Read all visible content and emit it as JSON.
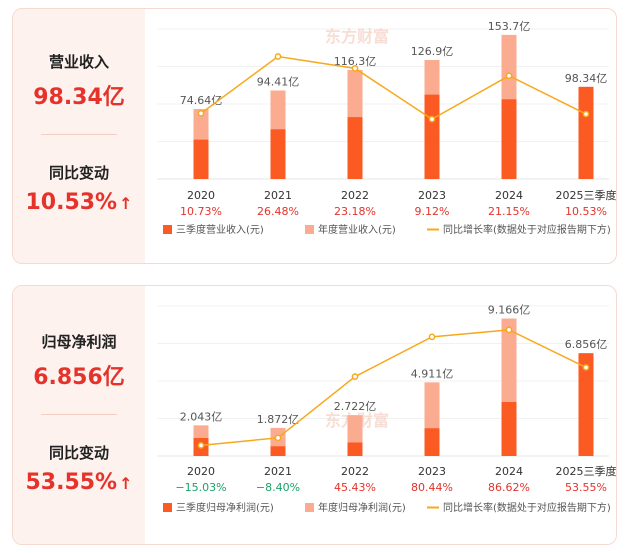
{
  "panels": [
    {
      "metric_label": "营业收入",
      "metric_value": "98.34亿",
      "change_label": "同比变动",
      "change_value": "10.53%",
      "change_arrow": "↑",
      "watermark": "东方财富",
      "legend": [
        "三季度营业收入(元)",
        "年度营业收入(元)",
        "同比增长率(数据处于对应报告期下方)"
      ]
    },
    {
      "metric_label": "归母净利润",
      "metric_value": "6.856亿",
      "change_label": "同比变动",
      "change_value": "53.55%",
      "change_arrow": "↑",
      "watermark": "东方财富",
      "legend": [
        "三季度归母净利润(元)",
        "年度归母净利润(元)",
        "同比增长率(数据处于对应报告期下方)"
      ]
    }
  ],
  "colors": {
    "q3_bar": "#fb5a22",
    "annual_bar": "#fbab8f",
    "line": "#f7a81b",
    "up": "#e5322b",
    "down": "#1aa36a"
  },
  "chart_data": [
    {
      "type": "bar",
      "categories": [
        "2020",
        "2021",
        "2022",
        "2023",
        "2024",
        "2025三季度"
      ],
      "series": [
        {
          "name": "三季度营业收入(元)",
          "values": [
            42,
            53,
            66,
            90,
            85,
            98.34
          ]
        },
        {
          "name": "年度营业收入(元)",
          "values": [
            74.64,
            94.41,
            116.3,
            126.9,
            153.7,
            null
          ]
        },
        {
          "name": "同比增长率(数据处于对应报告期下方)",
          "type": "line",
          "values": [
            10.73,
            26.48,
            23.18,
            9.12,
            21.15,
            10.53
          ]
        }
      ],
      "annual_labels": [
        "74.64亿",
        "94.41亿",
        "116.3亿",
        "126.9亿",
        "153.7亿",
        "98.34亿"
      ],
      "growth_labels": [
        "10.73%",
        "26.48%",
        "23.18%",
        "9.12%",
        "21.15%",
        "10.53%"
      ],
      "ylim": [
        0,
        160
      ],
      "growth_ylim": [
        5,
        28
      ]
    },
    {
      "type": "bar",
      "categories": [
        "2020",
        "2021",
        "2022",
        "2023",
        "2024",
        "2025三季度"
      ],
      "series": [
        {
          "name": "三季度归母净利润(元)",
          "values": [
            1.2,
            0.65,
            0.9,
            1.85,
            3.6,
            6.856
          ]
        },
        {
          "name": "年度归母净利润(元)",
          "values": [
            2.043,
            1.872,
            2.722,
            4.911,
            9.166,
            null
          ]
        },
        {
          "name": "同比增长率(数据处于对应报告期下方)",
          "type": "line",
          "values": [
            -15.03,
            -8.4,
            45.43,
            80.44,
            86.62,
            53.55
          ]
        }
      ],
      "annual_labels": [
        "2.043亿",
        "1.872亿",
        "2.722亿",
        "4.911亿",
        "9.166亿",
        "6.856亿"
      ],
      "growth_labels": [
        "−15.03%",
        "−8.40%",
        "45.43%",
        "80.44%",
        "86.62%",
        "53.55%"
      ],
      "ylim": [
        0,
        10
      ],
      "growth_ylim": [
        -20,
        90
      ]
    }
  ]
}
